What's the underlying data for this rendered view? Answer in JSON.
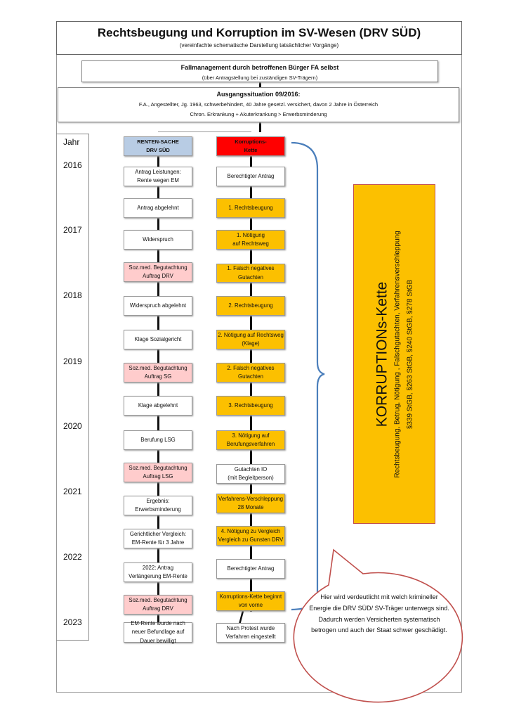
{
  "header": {
    "title": "Rechtsbeugung und Korruption im SV-Wesen (DRV SÜD)",
    "subtitle": "(vereinfachte schematische Darstellung tatsächlicher Vorgänge)"
  },
  "case_management": {
    "title": "Fallmanagement durch betroffenen Bürger  FA selbst",
    "subtitle": "(über Antragstellung bei zuständigen SV-Trägern)"
  },
  "initial_situation": {
    "title": "Ausgangssituation 09/2016:",
    "line1": "F.A., Angestellter, Jg. 1963, schwerbehindert, 40 Jahre gesetzl. versichert, davon 2 Jahre in Österreich",
    "line2": "Chron. Erkrankung + Akuterkrankung > Erwerbsminderung"
  },
  "years": {
    "header": "Jahr",
    "items": [
      "2016",
      "2017",
      "2018",
      "2019",
      "2020",
      "2021",
      "2022",
      "2023"
    ]
  },
  "colors": {
    "blue_header": "#b8cce4",
    "red_header": "#ff0000",
    "orange": "#fcc000",
    "pink": "#ffcccc",
    "white": "#ffffff",
    "brace": "#4a7ebb",
    "bubble": "#c0504d"
  },
  "left_column": [
    {
      "label": "RENTEN-SACHE\nDRV SÜD",
      "style": "blue_header"
    },
    {
      "label": "Antrag Leistungen:\nRente wegen EM",
      "style": "white"
    },
    {
      "label": "Antrag abgelehnt",
      "style": "white"
    },
    {
      "label": "Widerspruch",
      "style": "white"
    },
    {
      "label": "Soz.med. Begutachtung\nAuftrag DRV",
      "style": "pink"
    },
    {
      "label": "Widerspruch abgelehnt",
      "style": "white"
    },
    {
      "label": "Klage Sozialgericht",
      "style": "white"
    },
    {
      "label": "Soz.med. Begutachtung\nAuftrag SG",
      "style": "pink"
    },
    {
      "label": "Klage abgelehnt",
      "style": "white"
    },
    {
      "label": "Berufung LSG",
      "style": "white"
    },
    {
      "label": "Soz.med. Begutachtung\nAuftrag LSG",
      "style": "pink"
    },
    {
      "label": "Ergebnis:\nErwerbsminderung",
      "style": "white"
    },
    {
      "label": "Gerichtlicher Vergleich:\nEM-Rente für 3 Jahre",
      "style": "white"
    },
    {
      "label": "2022: Antrag\nVerlängerung EM-Rente",
      "style": "white"
    },
    {
      "label": "Soz.med. Begutachtung\nAuftrag DRV",
      "style": "pink"
    },
    {
      "label": "EM-Rente wurde nach\nneuer Befundlage auf\nDauer bewilligt",
      "style": "white"
    }
  ],
  "right_column": [
    {
      "label": "Korruptions-\nKette",
      "style": "red_header"
    },
    {
      "label": "Berechtigter Antrag",
      "style": "white"
    },
    {
      "label": "1. Rechtsbeugung",
      "style": "orange"
    },
    {
      "label": "1. Nötigung\nauf Rechtsweg",
      "style": "orange"
    },
    {
      "label": "1. Falsch negatives\nGutachten",
      "style": "orange"
    },
    {
      "label": "2. Rechtsbeugung",
      "style": "orange"
    },
    {
      "label": "2. Nötigung auf Rechtsweg\n(Klage)",
      "style": "orange"
    },
    {
      "label": "2. Falsch negatives\nGutachten",
      "style": "orange"
    },
    {
      "label": "3. Rechtsbeugung",
      "style": "orange"
    },
    {
      "label": "3. Nötigung auf\nBerufungsverfahren",
      "style": "orange"
    },
    {
      "label": "Gutachten IO\n(mit Begleitperson)",
      "style": "white"
    },
    {
      "label": "Verfahrens-Verschleppung\n28 Monate",
      "style": "orange"
    },
    {
      "label": "4. Nötigung zu Vergleich\nVergleich zu Gunsten DRV",
      "style": "orange"
    },
    {
      "label": "Berechtigter Antrag",
      "style": "white"
    },
    {
      "label": "Korruptions-Kette beginnt\nvon vorne",
      "style": "orange"
    },
    {
      "label": "Nach Protest wurde\nVerfahren eingestellt",
      "style": "white"
    }
  ],
  "corruption_panel": {
    "title": "KORRUPTIONs-Kette",
    "line1": "Rechtsbeugung, Betrug, Nötigung , Falschgutachten, Verfahrensverschleppung",
    "line2": "§339 StGB, §263 StGB, §240 StGB, §278 StGB"
  },
  "speech_bubble": {
    "text": "Hier wird verdeutlicht mit welch krimineller Energie die DRV SÜD/ SV-Träger unterwegs sind. Dadurch werden Versicherten systematisch betrogen und auch der Staat schwer geschädigt."
  }
}
